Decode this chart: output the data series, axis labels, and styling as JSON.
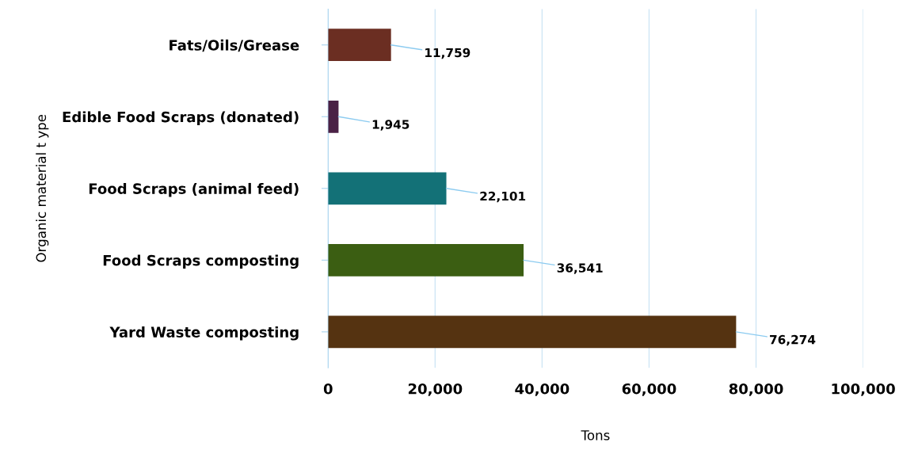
{
  "chart_data": {
    "type": "bar",
    "orientation": "horizontal",
    "xlabel": "Tons",
    "ylabel": "Organic material t ype",
    "categories": [
      "Fats/Oils/Grease",
      "Edible Food Scraps (donated)",
      "Food Scraps (animal feed)",
      "Food Scraps composting",
      "Yard Waste composting"
    ],
    "values": [
      11759,
      1945,
      22101,
      36541,
      76274
    ],
    "colors": [
      "#6b2e22",
      "#4a2145",
      "#137177",
      "#3b5e12",
      "#553311"
    ],
    "value_labels": [
      "11,759",
      "1,945",
      "22,101",
      "36,541",
      "76,274"
    ],
    "xlim": [
      0,
      100000
    ],
    "xticks": [
      {
        "value": 0,
        "label": "0"
      },
      {
        "value": 20000,
        "label": "20,000"
      },
      {
        "value": 40000,
        "label": "40,000"
      },
      {
        "value": 60000,
        "label": "60,000"
      },
      {
        "value": 80000,
        "label": "80,000"
      },
      {
        "value": 100000,
        "label": "100,000"
      }
    ],
    "grid": "x",
    "legend": false
  }
}
